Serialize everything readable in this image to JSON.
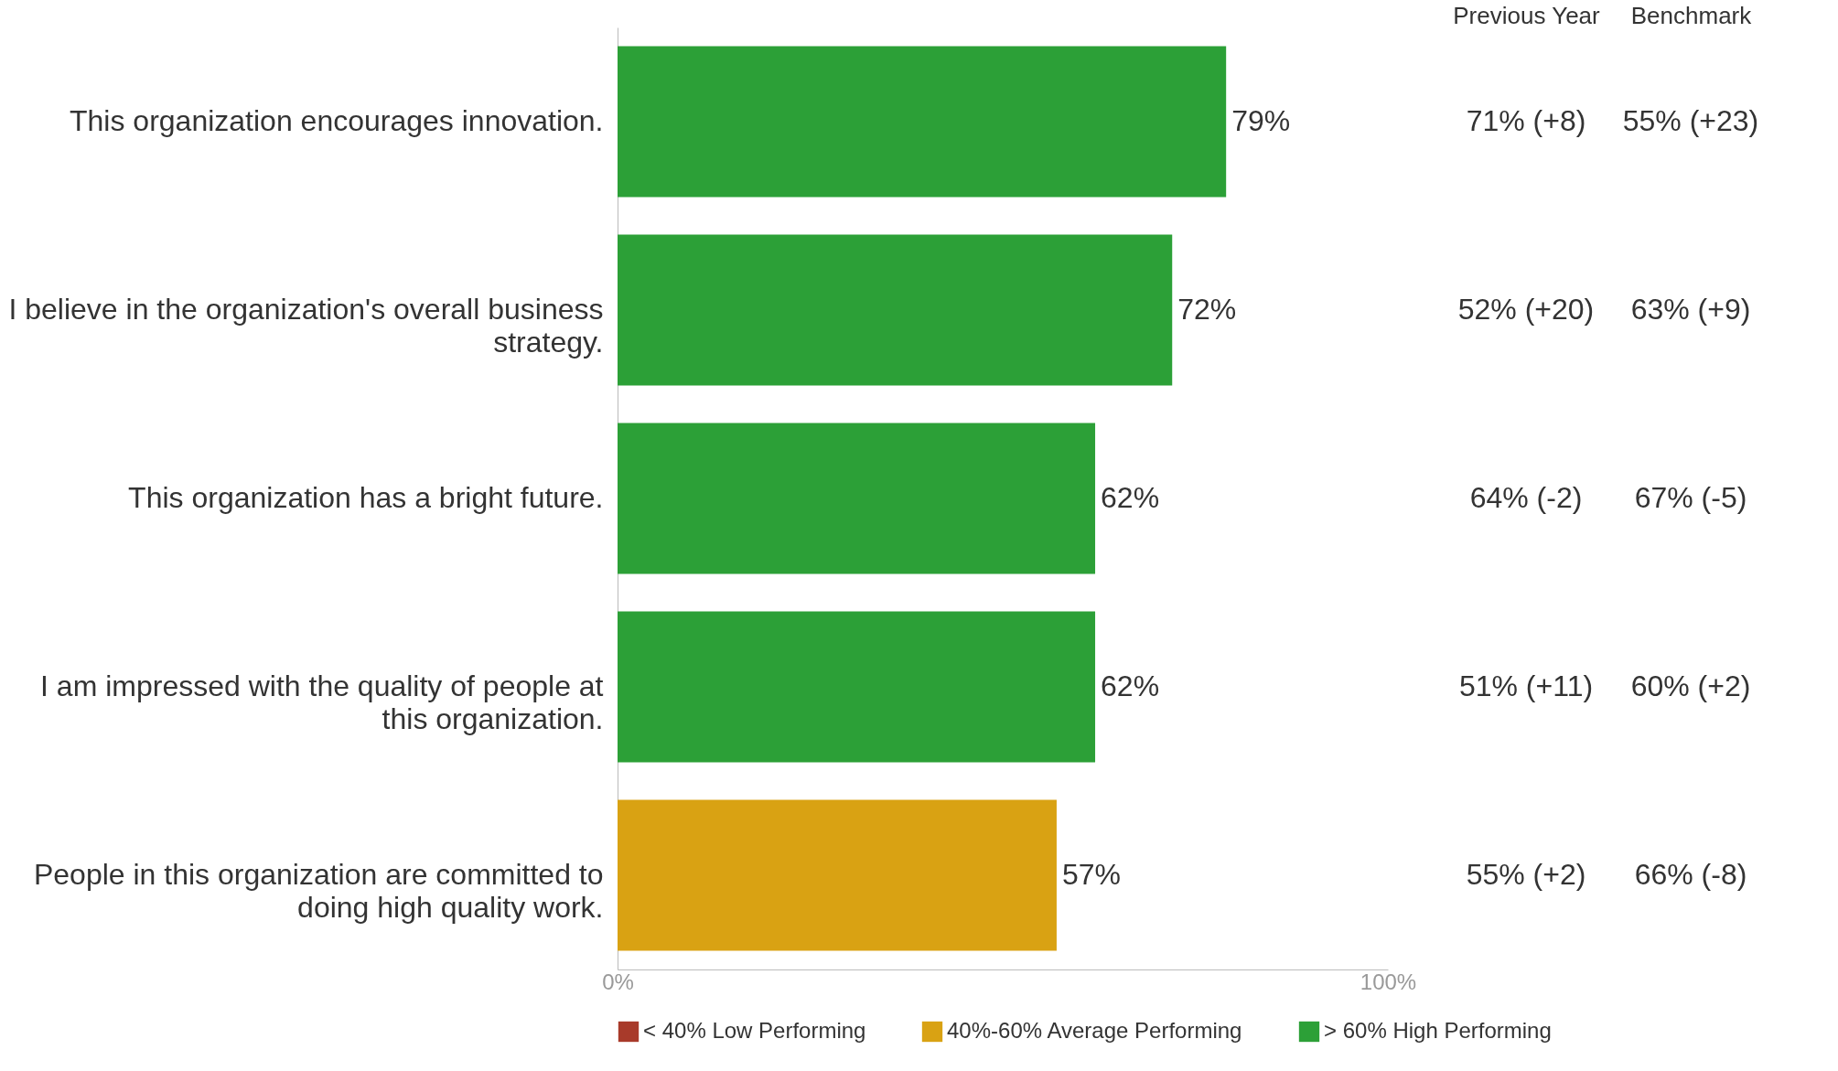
{
  "chart_data": {
    "type": "bar",
    "orientation": "horizontal",
    "stacked": true,
    "categories": [
      "This organization encourages innovation.",
      "I believe in the organization's overall business strategy.",
      "This organization has a bright future.",
      "I am impressed with the quality of people at this organization.",
      "People in this organization are committed to doing high quality work."
    ],
    "series": [
      {
        "name": "< 40% Low Performing",
        "color": "#a83a2a",
        "values": [
          null,
          null,
          null,
          null,
          null
        ]
      },
      {
        "name": "40%-60% Average Performing",
        "color": "#d9a213",
        "values": [
          null,
          null,
          null,
          null,
          57
        ],
        "value_labels": [
          null,
          null,
          null,
          null,
          "57%"
        ]
      },
      {
        "name": "> 60% High Performing",
        "color": "#2ca037",
        "values": [
          79,
          72,
          62,
          62,
          null
        ],
        "value_labels": [
          "79%",
          "72%",
          "62%",
          "62%",
          null
        ]
      }
    ],
    "xlim": [
      0,
      100
    ],
    "xticks": [
      {
        "value": 0,
        "label": "0%"
      },
      {
        "value": 100,
        "label": "100%"
      }
    ],
    "grid": false,
    "legend": "bottom",
    "annotations": [
      "Previous Year",
      "Benchmark",
      "71% (+8)",
      "55% (+23)",
      "52% (+20)",
      "63% (+9)",
      "64% (-2)",
      "67% (-5)",
      "51% (+11)",
      "60% (+2)",
      "55% (+2)",
      "66% (-8)"
    ]
  }
}
